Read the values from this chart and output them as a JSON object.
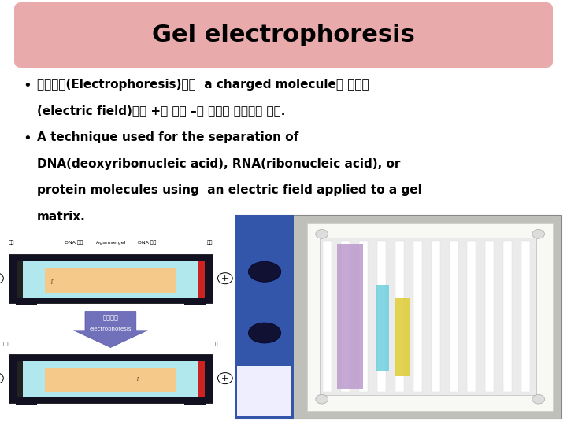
{
  "title": "Gel electrophoresis",
  "title_bg_color": "#E8AAAA",
  "title_font_size": 22,
  "background_color": "#FFFFFF",
  "bullet1_line1": "전기영동(Electrophoresis)이란  a charged molecule이 전기장",
  "bullet1_line2": "(electric field)에서 +극 또는 –극 쪽으로 이동하는 현상.",
  "bullet2_line1": "A technique used for the separation of",
  "bullet2_line2": "DNA(deoxyribonucleic acid), RNA(ribonucleic acid), or",
  "bullet2_line3": "protein molecules using  an electric field applied to a gel",
  "bullet2_line4": "matrix.",
  "text_color": "#000000",
  "bullet_font_size": 11,
  "label_font_size": 5.5,
  "arrow_color": "#7070BB",
  "tray_color": "#111122",
  "buffer_color": "#B0E8EE",
  "gel_color": "#F5C98A",
  "left_electrode_color": "#333333",
  "right_electrode_color": "#CC2222",
  "photo_left_color": "#3355AA",
  "photo_bg_color": "#E8E8E8",
  "photo_frame_color": "#F5F5F0",
  "band1_color": "#CC88CC",
  "band2_color": "#66CCDD",
  "band3_color": "#DDCC33"
}
